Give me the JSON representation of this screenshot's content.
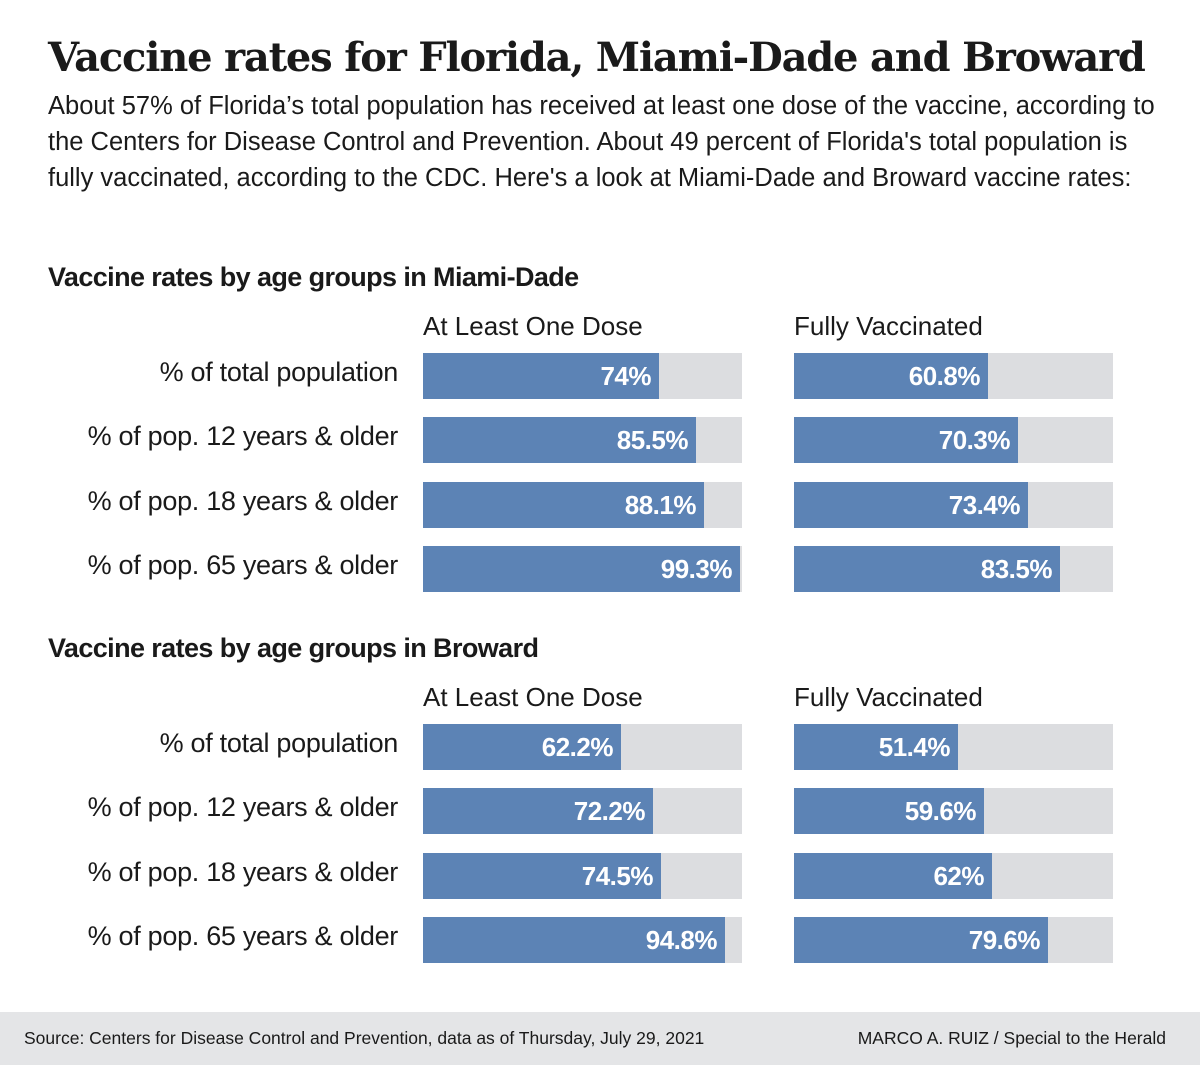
{
  "title": "Vaccine rates for Florida, Miami-Dade and Broward",
  "intro": "About 57% of Florida’s total population has received at least one dose of the vaccine, according to the Centers for Disease Control and Prevention. About 49 percent of Florida's total population is fully vaccinated, according to the CDC. Here's a look at Miami-Dade and Broward vaccine rates:",
  "footer": {
    "source": "Source: Centers for Disease Control and Prevention, data as of Thursday, July 29, 2021",
    "credit": "MARCO A. RUIZ / Special to the Herald"
  },
  "colors": {
    "bar_fill": "#5c83b5",
    "bar_track": "#dcdde0",
    "footer_bg": "#e4e5e7"
  },
  "chart_data": [
    {
      "type": "bar",
      "orientation": "horizontal",
      "title": "Vaccine rates by age groups in Miami-Dade",
      "categories": [
        "% of total population",
        "% of pop. 12 years & older",
        "% of pop. 18 years & older",
        "% of pop. 65 years & older"
      ],
      "xlim": [
        0,
        100
      ],
      "grid": false,
      "series": [
        {
          "name": "At Least One Dose",
          "values": [
            74,
            85.5,
            88.1,
            99.3
          ],
          "labels": [
            "74%",
            "85.5%",
            "88.1%",
            "99.3%"
          ]
        },
        {
          "name": "Fully Vaccinated",
          "values": [
            60.8,
            70.3,
            73.4,
            83.5
          ],
          "labels": [
            "60.8%",
            "70.3%",
            "73.4%",
            "83.5%"
          ]
        }
      ]
    },
    {
      "type": "bar",
      "orientation": "horizontal",
      "title": "Vaccine rates by age groups in Broward",
      "categories": [
        "% of total population",
        "% of pop. 12 years & older",
        "% of pop. 18 years & older",
        "% of pop. 65 years & older"
      ],
      "xlim": [
        0,
        100
      ],
      "grid": false,
      "series": [
        {
          "name": "At Least One Dose",
          "values": [
            62.2,
            72.2,
            74.5,
            94.8
          ],
          "labels": [
            "62.2%",
            "72.2%",
            "74.5%",
            "94.8%"
          ]
        },
        {
          "name": "Fully Vaccinated",
          "values": [
            51.4,
            59.6,
            62,
            79.6
          ],
          "labels": [
            "51.4%",
            "59.6%",
            "62%",
            "79.6%"
          ]
        }
      ]
    }
  ]
}
